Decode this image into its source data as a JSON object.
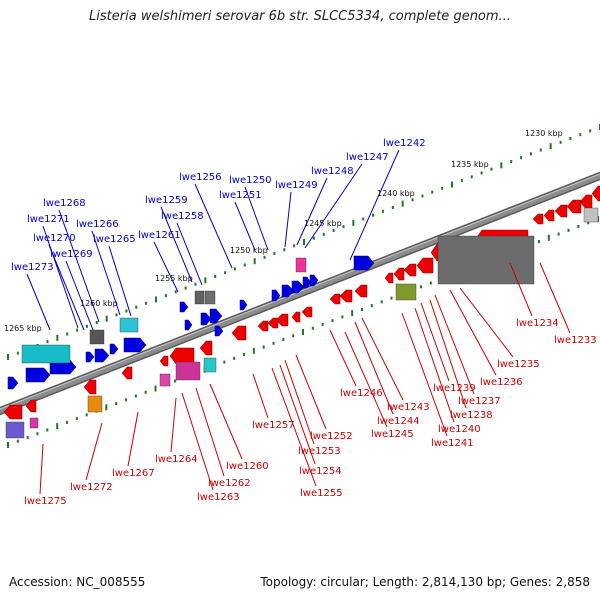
{
  "title": "Listeria welshimeri serovar 6b str. SLCC5334, complete genom...",
  "footer": {
    "accession": "Accession: NC_008555",
    "summary": "Topology: circular; Length: 2,814,130 bp; Genes: 2,858"
  },
  "colors": {
    "forward_label": "#0000cc",
    "reverse_label": "#cc0000",
    "backbone": "#8c8c8c",
    "ticks": "#1e7a1e"
  },
  "scale_labels": [
    "1230 kbp",
    "1235 kbp",
    "1240 kbp",
    "1245 kbp",
    "1250 kbp",
    "1255 kbp",
    "1260 kbp",
    "1265 kbp"
  ],
  "forward_genes": [
    "lwe1242",
    "lwe1247",
    "lwe1248",
    "lwe1249",
    "lwe1250",
    "lwe1251",
    "lwe1256",
    "lwe1258",
    "lwe1259",
    "lwe1261",
    "lwe1265",
    "lwe1266",
    "lwe1268",
    "lwe1269",
    "lwe1270",
    "lwe1271",
    "lwe1273"
  ],
  "reverse_genes": [
    "lwe1233",
    "lwe1234",
    "lwe1235",
    "lwe1236",
    "lwe1237",
    "lwe1238",
    "lwe1239",
    "lwe1240",
    "lwe1241",
    "lwe1243",
    "lwe1244",
    "lwe1245",
    "lwe1246",
    "lwe1252",
    "lwe1253",
    "lwe1254",
    "lwe1255",
    "lwe1257",
    "lwe1260",
    "lwe1262",
    "lwe1263",
    "lwe1264",
    "lwe1267",
    "lwe1272",
    "lwe1275"
  ]
}
